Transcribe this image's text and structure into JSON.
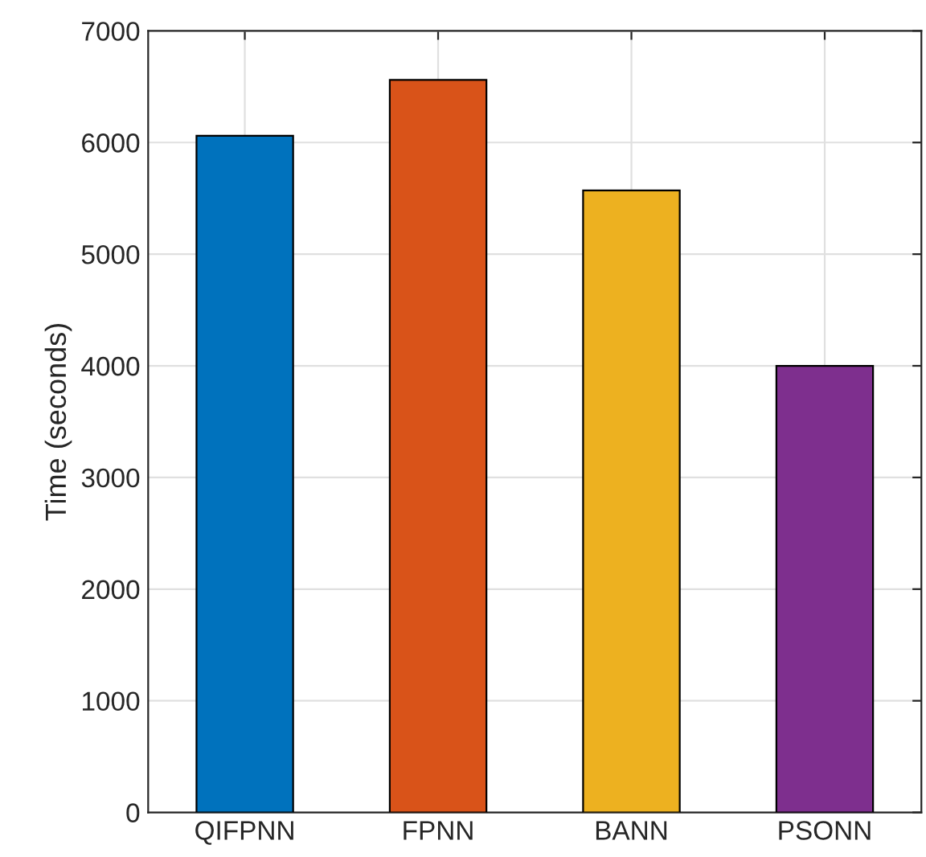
{
  "chart_data": {
    "type": "bar",
    "ylabel": "Time (seconds)",
    "categories": [
      "QIFPNN",
      "FPNN",
      "BANN",
      "PSONN"
    ],
    "values": [
      6060,
      6560,
      5570,
      4000
    ],
    "colors": [
      "#0072bd",
      "#d95319",
      "#edb120",
      "#7e2f8e"
    ],
    "ylim": [
      0,
      7000
    ],
    "yticks": [
      0,
      1000,
      2000,
      3000,
      4000,
      5000,
      6000,
      7000
    ],
    "grid": true
  }
}
